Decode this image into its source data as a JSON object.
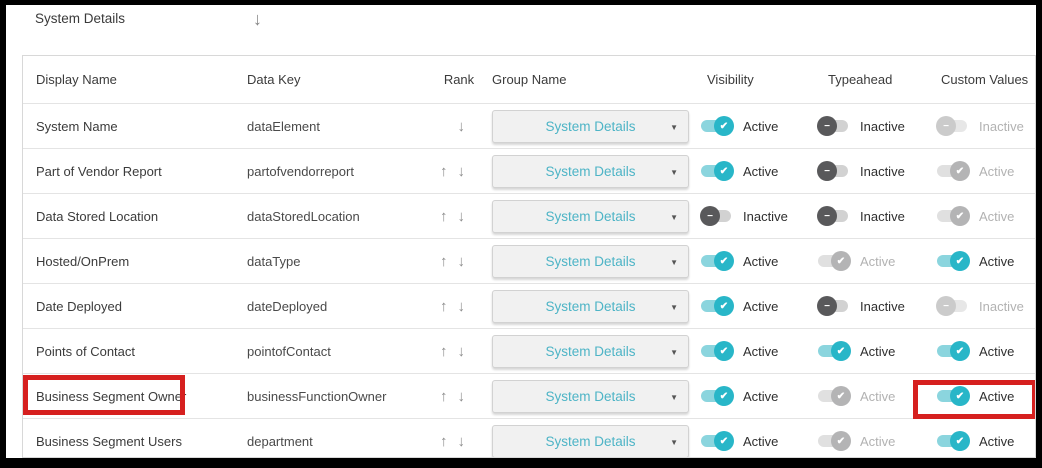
{
  "page": {
    "section_label": "System Details"
  },
  "icons": {
    "arrow_down": "↓",
    "rank_up": "↑",
    "rank_down": "↓",
    "dropdown_caret": "▼",
    "check": "✔",
    "minus": "−"
  },
  "colors": {
    "toggle_active_teal": "#28b6c8",
    "toggle_active_track": "#8bd5de",
    "toggle_inactive_knob": "#59595b",
    "group_link_teal": "#4db4c6",
    "highlight_red": "#d6201f"
  },
  "table": {
    "columns": [
      "Display Name",
      "Data Key",
      "Rank",
      "Group Name",
      "Visibility",
      "Typeahead",
      "Custom Values"
    ],
    "rows": [
      {
        "display_name": "System Name",
        "data_key": "dataElement",
        "rank_up": false,
        "rank_down": true,
        "group_name": "System Details",
        "visibility": {
          "state": "on",
          "disabled": false,
          "label": "Active"
        },
        "typeahead": {
          "state": "off",
          "disabled": false,
          "label": "Inactive"
        },
        "custom_values": {
          "state": "off",
          "disabled": true,
          "label": "Inactive"
        },
        "highlight_name": false,
        "highlight_custom": false
      },
      {
        "display_name": "Part of Vendor Report",
        "data_key": "partofvendorreport",
        "rank_up": true,
        "rank_down": true,
        "group_name": "System Details",
        "visibility": {
          "state": "on",
          "disabled": false,
          "label": "Active"
        },
        "typeahead": {
          "state": "off",
          "disabled": false,
          "label": "Inactive"
        },
        "custom_values": {
          "state": "on",
          "disabled": true,
          "label": "Active"
        },
        "highlight_name": false,
        "highlight_custom": false
      },
      {
        "display_name": "Data Stored Location",
        "data_key": "dataStoredLocation",
        "rank_up": true,
        "rank_down": true,
        "group_name": "System Details",
        "visibility": {
          "state": "off",
          "disabled": false,
          "label": "Inactive"
        },
        "typeahead": {
          "state": "off",
          "disabled": false,
          "label": "Inactive"
        },
        "custom_values": {
          "state": "on",
          "disabled": true,
          "label": "Active"
        },
        "highlight_name": false,
        "highlight_custom": false
      },
      {
        "display_name": "Hosted/OnPrem",
        "data_key": "dataType",
        "rank_up": true,
        "rank_down": true,
        "group_name": "System Details",
        "visibility": {
          "state": "on",
          "disabled": false,
          "label": "Active"
        },
        "typeahead": {
          "state": "on",
          "disabled": true,
          "label": "Active"
        },
        "custom_values": {
          "state": "on",
          "disabled": false,
          "label": "Active"
        },
        "highlight_name": false,
        "highlight_custom": false
      },
      {
        "display_name": "Date Deployed",
        "data_key": "dateDeployed",
        "rank_up": true,
        "rank_down": true,
        "group_name": "System Details",
        "visibility": {
          "state": "on",
          "disabled": false,
          "label": "Active"
        },
        "typeahead": {
          "state": "off",
          "disabled": false,
          "label": "Inactive"
        },
        "custom_values": {
          "state": "off",
          "disabled": true,
          "label": "Inactive"
        },
        "highlight_name": false,
        "highlight_custom": false
      },
      {
        "display_name": "Points of Contact",
        "data_key": "pointofContact",
        "rank_up": true,
        "rank_down": true,
        "group_name": "System Details",
        "visibility": {
          "state": "on",
          "disabled": false,
          "label": "Active"
        },
        "typeahead": {
          "state": "on",
          "disabled": false,
          "label": "Active"
        },
        "custom_values": {
          "state": "on",
          "disabled": false,
          "label": "Active"
        },
        "highlight_name": false,
        "highlight_custom": false
      },
      {
        "display_name": "Business Segment Owner",
        "data_key": "businessFunctionOwner",
        "rank_up": true,
        "rank_down": true,
        "group_name": "System Details",
        "visibility": {
          "state": "on",
          "disabled": false,
          "label": "Active"
        },
        "typeahead": {
          "state": "on",
          "disabled": true,
          "label": "Active"
        },
        "custom_values": {
          "state": "on",
          "disabled": false,
          "label": "Active"
        },
        "highlight_name": true,
        "highlight_custom": true
      },
      {
        "display_name": "Business Segment Users",
        "data_key": "department",
        "rank_up": true,
        "rank_down": true,
        "group_name": "System Details",
        "visibility": {
          "state": "on",
          "disabled": false,
          "label": "Active"
        },
        "typeahead": {
          "state": "on",
          "disabled": true,
          "label": "Active"
        },
        "custom_values": {
          "state": "on",
          "disabled": false,
          "label": "Active"
        },
        "highlight_name": false,
        "highlight_custom": false
      }
    ]
  }
}
